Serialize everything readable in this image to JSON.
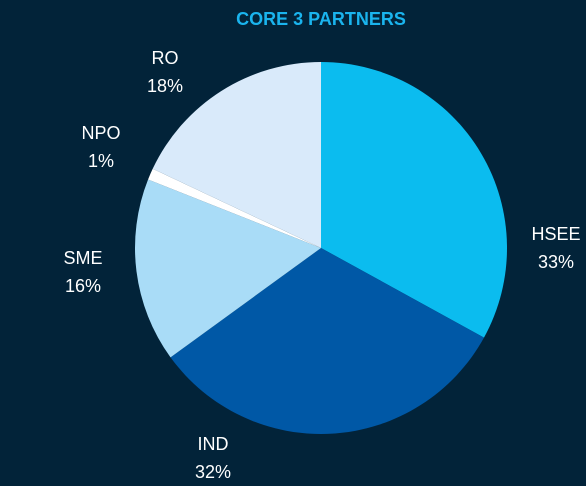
{
  "chart_data": {
    "type": "pie",
    "title": "CORE 3 PARTNERS",
    "categories": [
      "HSEE",
      "IND",
      "SME",
      "NPO",
      "RO"
    ],
    "values": [
      33,
      32,
      16,
      1,
      18
    ],
    "value_labels": [
      "33%",
      "32%",
      "16%",
      "1%",
      "18%"
    ],
    "colors": [
      "#0bbcef",
      "#0058a6",
      "#a9dcf7",
      "#ffffff",
      "#d9eafa"
    ]
  }
}
